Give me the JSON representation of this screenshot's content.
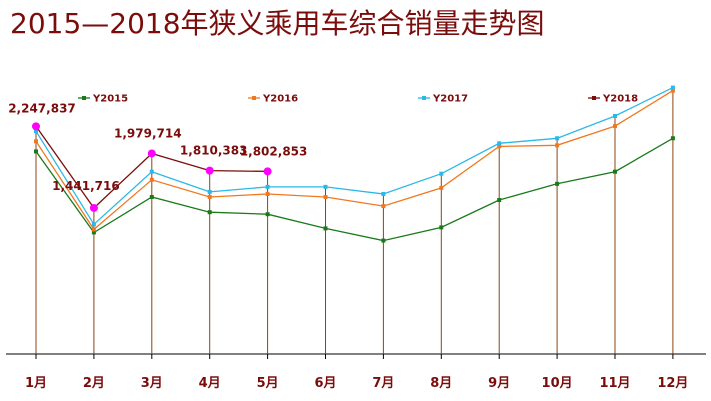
{
  "chart_data": {
    "type": "line",
    "title": "2015—2018年狭义乘用车综合销量走势图",
    "categories": [
      "1月",
      "2月",
      "3月",
      "4月",
      "5月",
      "6月",
      "7月",
      "8月",
      "9月",
      "10月",
      "11月",
      "12月"
    ],
    "ylim": [
      0,
      3100000
    ],
    "grid": false,
    "legend_position": "top",
    "series": [
      {
        "name": "Y2015",
        "color": "#1a7a1a",
        "values": [
          2000000,
          1200000,
          1550000,
          1400000,
          1380000,
          1240000,
          1120000,
          1250000,
          1520000,
          1680000,
          1800000,
          2130000
        ]
      },
      {
        "name": "Y2016",
        "color": "#f07820",
        "values": [
          2100000,
          1230000,
          1720000,
          1550000,
          1580000,
          1550000,
          1460000,
          1640000,
          2050000,
          2060000,
          2250000,
          2600000
        ]
      },
      {
        "name": "Y2017",
        "color": "#2ab8e8",
        "values": [
          2200000,
          1280000,
          1800000,
          1600000,
          1650000,
          1650000,
          1580000,
          1780000,
          2080000,
          2130000,
          2350000,
          2630000
        ]
      },
      {
        "name": "Y2018",
        "color": "#7b0c0c",
        "values": [
          2247837,
          1441716,
          1979714,
          1810383,
          1802853,
          null,
          null,
          null,
          null,
          null,
          null,
          null
        ]
      }
    ],
    "data_labels": [
      {
        "index": 0,
        "text": "2,247,837"
      },
      {
        "index": 1,
        "text": "1,441,716"
      },
      {
        "index": 2,
        "text": "1,979,714"
      },
      {
        "index": 3,
        "text": "1,810,383"
      },
      {
        "index": 4,
        "text": "1,802,853"
      }
    ]
  },
  "colors": {
    "title": "#7b0c0c",
    "axis": "#000000",
    "drop_line": "#8b4513",
    "highlight_marker": "#ff00ff"
  }
}
